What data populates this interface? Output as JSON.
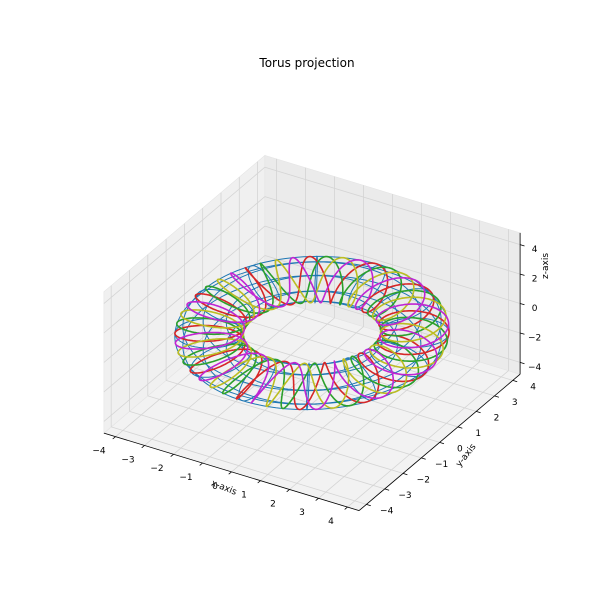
{
  "chart_data": {
    "type": "line",
    "projection": "3d",
    "title": "Torus projection",
    "xlabel": "x-axis",
    "ylabel": "y-axis",
    "zlabel": "z-axis",
    "xlim": [
      -4.4,
      4.4
    ],
    "ylim": [
      -4.4,
      4.4
    ],
    "zlim": [
      -4.8,
      4.8
    ],
    "xticks": [
      -4,
      -3,
      -2,
      -1,
      0,
      1,
      2,
      3,
      4
    ],
    "yticks": [
      -4,
      -3,
      -2,
      -1,
      0,
      1,
      2,
      3,
      4
    ],
    "zticks": [
      -4,
      -2,
      0,
      2,
      4
    ],
    "grid": true,
    "torus": {
      "major_radius": 3,
      "minor_radius": 1
    },
    "wireframe": {
      "color": "#1f77b4",
      "rings": 9,
      "meridians": 12
    },
    "series": [
      {
        "color": "#d62728",
        "winds": 12,
        "phase": 0.0
      },
      {
        "color": "#2ca02c",
        "winds": 12,
        "phase": 1.57
      },
      {
        "color": "#bcbd22",
        "winds": 12,
        "phase": 3.14
      },
      {
        "color": "#c026d3",
        "winds": 12,
        "phase": 4.71
      }
    ]
  }
}
